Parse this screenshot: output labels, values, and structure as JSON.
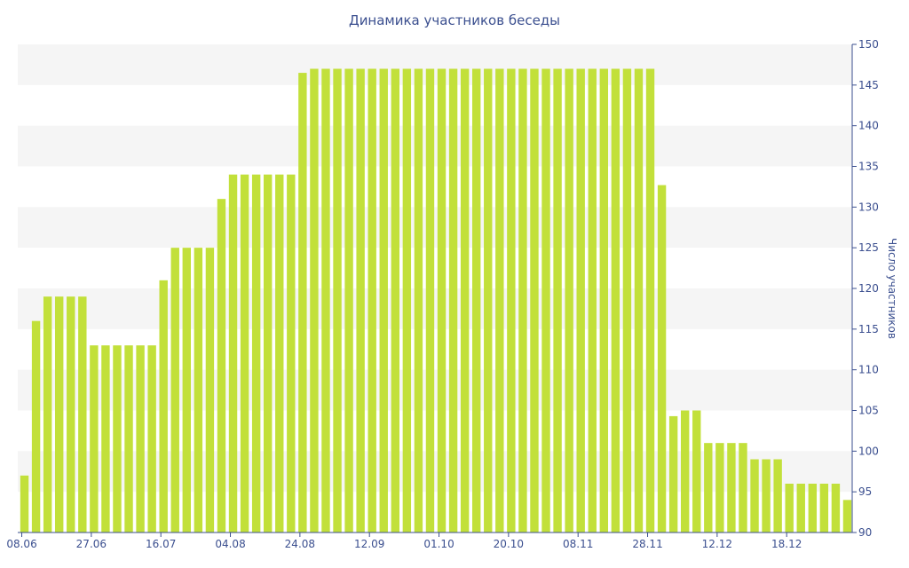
{
  "chart_data": {
    "type": "bar",
    "title": "Динамика участников беседы",
    "xlabel": "",
    "ylabel": "Число участников",
    "ylim": [
      90,
      150
    ],
    "yticks": [
      90,
      95,
      100,
      105,
      110,
      115,
      120,
      125,
      130,
      135,
      140,
      145,
      150
    ],
    "y_axis_side": "right",
    "grid": "alternating horizontal bands",
    "x_tick_labels": [
      {
        "label": "08.06",
        "index": 0
      },
      {
        "label": "27.06",
        "index": 6
      },
      {
        "label": "16.07",
        "index": 12
      },
      {
        "label": "04.08",
        "index": 18
      },
      {
        "label": "24.08",
        "index": 24
      },
      {
        "label": "12.09",
        "index": 30
      },
      {
        "label": "01.10",
        "index": 36
      },
      {
        "label": "20.10",
        "index": 42
      },
      {
        "label": "08.11",
        "index": 48
      },
      {
        "label": "28.11",
        "index": 54
      },
      {
        "label": "12.12",
        "index": 60
      },
      {
        "label": "18.12",
        "index": 66
      }
    ],
    "values": [
      97,
      116,
      119,
      119,
      119,
      119,
      113,
      113,
      113,
      113,
      113,
      113,
      121,
      125,
      125,
      125,
      125,
      131,
      134,
      134,
      134,
      134,
      134,
      134,
      146.5,
      147,
      147,
      147,
      147,
      147,
      147,
      147,
      147,
      147,
      147,
      147,
      147,
      147,
      147,
      147,
      147,
      147,
      147,
      147,
      147,
      147,
      147,
      147,
      147,
      147,
      147,
      147,
      147,
      147,
      147,
      132.7,
      104.3,
      105,
      105,
      101,
      101,
      101,
      101,
      99,
      99,
      99,
      96,
      96,
      96,
      96,
      96,
      94
    ],
    "bar_color": "#c2e03a",
    "text_color": "#3b4f8f",
    "band_color": "#f5f5f5"
  }
}
